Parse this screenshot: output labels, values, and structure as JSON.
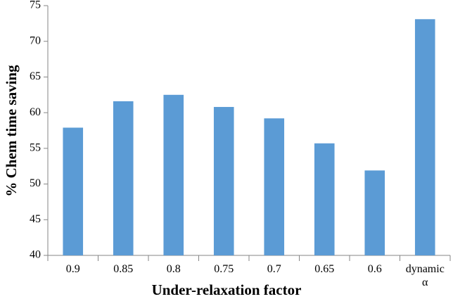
{
  "chart_data": {
    "type": "bar",
    "x_label": "Under-relaxation factor",
    "y_label": "% Chem time saving",
    "categories": [
      "0.9",
      "0.85",
      "0.8",
      "0.75",
      "0.7",
      "0.65",
      "0.6",
      "dynamic α"
    ],
    "values": [
      57.9,
      61.6,
      62.5,
      60.8,
      59.2,
      55.7,
      51.9,
      73.1
    ],
    "color": "#5b9bd5",
    "ylim": [
      40,
      75
    ],
    "yticks": [
      40,
      45,
      50,
      55,
      60,
      65,
      70,
      75
    ],
    "grid": false
  }
}
